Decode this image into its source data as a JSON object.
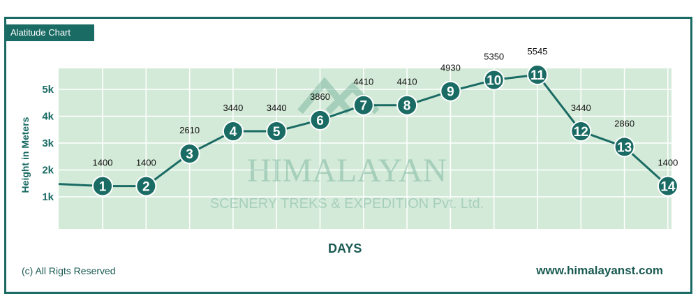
{
  "chart_data": {
    "type": "line",
    "title": "Alatitude Chart",
    "xlabel": "DAYS",
    "ylabel": "Height in Meters",
    "categories": [
      "1",
      "2",
      "3",
      "4",
      "5",
      "6",
      "7",
      "8",
      "9",
      "10",
      "11",
      "12",
      "13",
      "14"
    ],
    "values": [
      1400,
      1400,
      2610,
      3440,
      3440,
      3860,
      4410,
      4410,
      4930,
      5350,
      5545,
      3440,
      2860,
      1400
    ],
    "y_ticks": [
      "1k",
      "2k",
      "3k",
      "4k",
      "5k"
    ],
    "grid": true,
    "colors": {
      "line": "#1a6b64",
      "plot_bg": "#d4ead8",
      "grid": "#ffffff",
      "marker": "#1a6b64",
      "marker_text": "#ffffff"
    }
  },
  "watermark": {
    "brand": "HIMALAYAN",
    "tagline": "SCENERY TREKS & EXPEDITION Pvt. Ltd."
  },
  "footer": {
    "copyright": "(c) All Rigts Reserved",
    "website": "www.himalayanst.com"
  }
}
